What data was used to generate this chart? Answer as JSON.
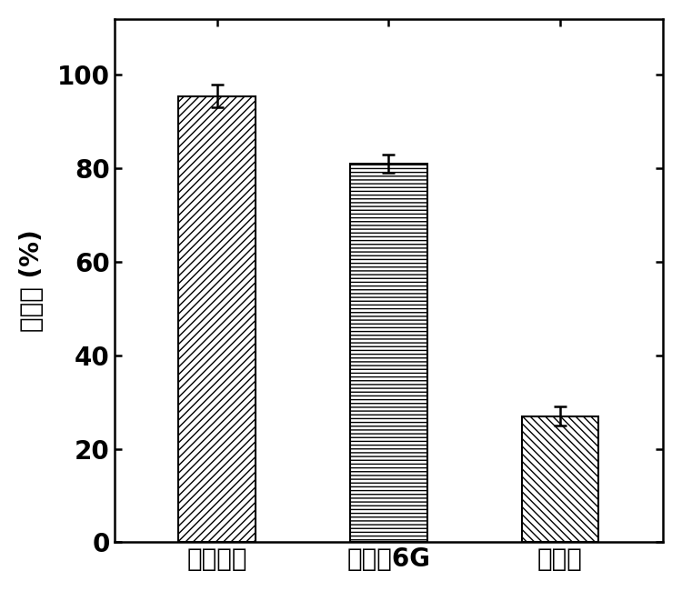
{
  "categories": [
    "亚甲基蓝",
    "罗丹明6G",
    "甲基橙"
  ],
  "values": [
    95.5,
    81.0,
    27.0
  ],
  "errors": [
    2.5,
    2.0,
    2.0
  ],
  "hatches": [
    "////",
    "----",
    "\\\\\\\\"
  ],
  "bar_facecolor": "white",
  "bar_edgecolor": "black",
  "bar_linewidth": 1.5,
  "ylabel": "降解率 (%)",
  "ylabel_lines": [
    "降解率",
    "(%)"
  ],
  "ylim": [
    0,
    112
  ],
  "yticks": [
    0,
    20,
    40,
    60,
    80,
    100
  ],
  "figsize": [
    7.5,
    6.5
  ],
  "dpi": 100,
  "bar_width": 0.45,
  "errorbar_color": "black",
  "errorbar_capsize": 5,
  "errorbar_linewidth": 1.8,
  "tick_fontsize": 20,
  "ylabel_fontsize": 20,
  "xlabel_fontsize": 20,
  "spine_linewidth": 1.8
}
